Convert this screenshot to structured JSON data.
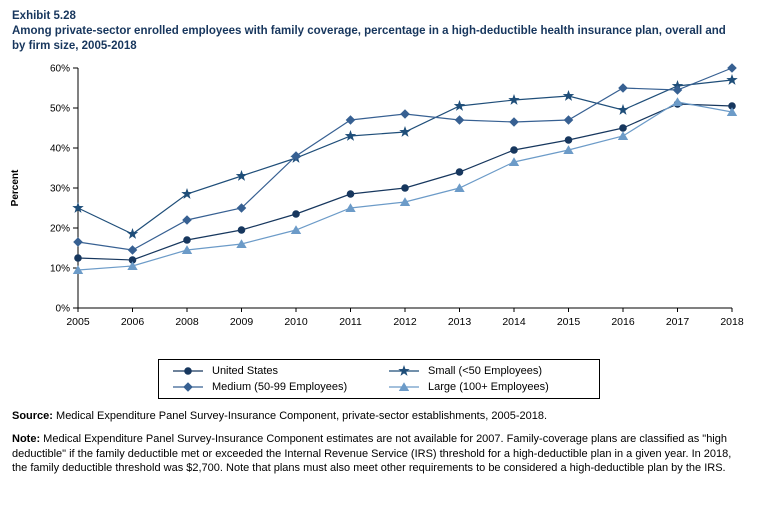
{
  "exhibit": {
    "label": "Exhibit 5.28",
    "title": "Among private-sector enrolled employees with family coverage, percentage in a high-deductible health insurance plan, overall and by firm size, 2005-2018"
  },
  "chart_data": {
    "type": "line",
    "categories": [
      "2005",
      "2006",
      "2008",
      "2009",
      "2010",
      "2011",
      "2012",
      "2013",
      "2014",
      "2015",
      "2016",
      "2017",
      "2018"
    ],
    "series": [
      {
        "name": "United States",
        "marker": "circle",
        "color": "#17375E",
        "values": [
          12.5,
          12,
          17,
          19.5,
          23.5,
          28.5,
          30,
          34,
          39.5,
          42,
          45,
          51,
          50.5
        ]
      },
      {
        "name": "Small (<50 Employees)",
        "marker": "star",
        "color": "#1F4E79",
        "values": [
          25,
          18.5,
          28.5,
          33,
          37.5,
          43,
          44,
          50.5,
          52,
          53,
          49.5,
          55.5,
          57
        ]
      },
      {
        "name": "Medium (50-99 Employees)",
        "marker": "diamond",
        "color": "#376092",
        "values": [
          16.5,
          14.5,
          22,
          25,
          38,
          47,
          48.5,
          47,
          46.5,
          47,
          55,
          54.5,
          60
        ]
      },
      {
        "name": "Large (100+ Employees)",
        "marker": "triangle",
        "color": "#6C9BC8",
        "values": [
          9.5,
          10.5,
          14.5,
          16,
          19.5,
          25,
          26.5,
          30,
          36.5,
          39.5,
          43,
          51.5,
          49
        ]
      }
    ],
    "ylabel": "Percent",
    "ylim": [
      0,
      60
    ],
    "ytick_step": 10,
    "ytick_suffix": "%",
    "grid": false,
    "legend_position": "bottom"
  },
  "notes": {
    "source_label": "Source:",
    "source_text": " Medical Expenditure Panel Survey-Insurance Component, private-sector establishments, 2005-2018.",
    "note_label": "Note:",
    "note_text": " Medical Expenditure Panel Survey-Insurance Component estimates are not available for 2007. Family-coverage plans are classified as \"high deductible\" if the family deductible met or exceeded the Internal Revenue Service (IRS) threshold for a high-deductible plan in a given year. In 2018, the family deductible threshold was $2,700. Note that plans must also meet other requirements to be considered a high-deductible plan by the IRS."
  }
}
